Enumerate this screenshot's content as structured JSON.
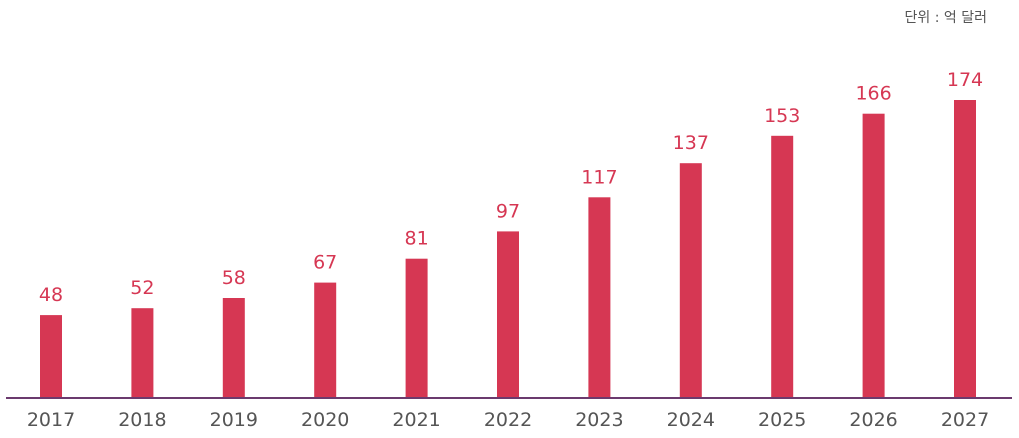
{
  "unit_label": "단위 : 억 달러",
  "colors": {
    "bar": "#d63753",
    "value_label": "#d63753",
    "axis_line": "#6b3a6e",
    "tick_label": "#555555"
  },
  "chart_data": {
    "type": "bar",
    "categories": [
      "2017",
      "2018",
      "2019",
      "2020",
      "2021",
      "2022",
      "2023",
      "2024",
      "2025",
      "2026",
      "2027"
    ],
    "values": [
      48,
      52,
      58,
      67,
      81,
      97,
      117,
      137,
      153,
      166,
      174
    ],
    "title": "",
    "xlabel": "",
    "ylabel": "",
    "ylim": [
      0,
      174
    ],
    "grid": false,
    "legend": "none"
  }
}
